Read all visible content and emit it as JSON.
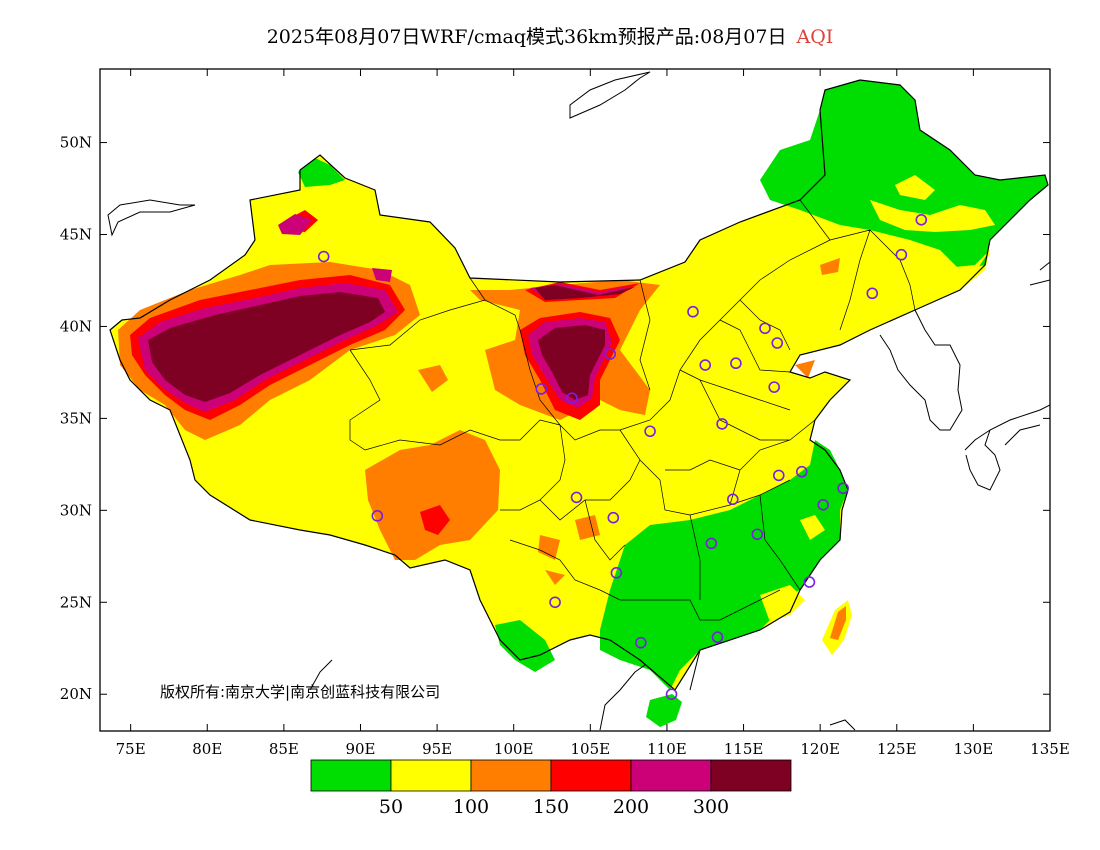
{
  "header": {
    "title": "2025年08月07日WRF/cmaq模式36km预报产品:08月07日",
    "variable": "AQI",
    "variable_color": "#e0403a"
  },
  "map": {
    "lon_range": [
      73,
      135
    ],
    "lat_range": [
      18,
      54
    ],
    "lon_ticks": [
      {
        "v": 75,
        "label": "75E"
      },
      {
        "v": 80,
        "label": "80E"
      },
      {
        "v": 85,
        "label": "85E"
      },
      {
        "v": 90,
        "label": "90E"
      },
      {
        "v": 95,
        "label": "95E"
      },
      {
        "v": 100,
        "label": "100E"
      },
      {
        "v": 105,
        "label": "105E"
      },
      {
        "v": 110,
        "label": "110E"
      },
      {
        "v": 115,
        "label": "115E"
      },
      {
        "v": 120,
        "label": "120E"
      },
      {
        "v": 125,
        "label": "125E"
      },
      {
        "v": 130,
        "label": "130E"
      },
      {
        "v": 135,
        "label": "135E"
      }
    ],
    "lat_ticks": [
      {
        "v": 20,
        "label": "20N"
      },
      {
        "v": 25,
        "label": "25N"
      },
      {
        "v": 30,
        "label": "30N"
      },
      {
        "v": 35,
        "label": "35N"
      },
      {
        "v": 40,
        "label": "40N"
      },
      {
        "v": 45,
        "label": "45N"
      },
      {
        "v": 50,
        "label": "50N"
      }
    ],
    "copyright": "版权所有:南京大学|南京创蓝科技有限公司"
  },
  "legend": {
    "colors": [
      "#00dd00",
      "#ffff00",
      "#ff7e00",
      "#ff0000",
      "#cc0077",
      "#7e0023"
    ],
    "labels": [
      "50",
      "100",
      "150",
      "200",
      "300"
    ]
  },
  "cities": [
    [
      126.6,
      45.8
    ],
    [
      125.3,
      43.9
    ],
    [
      123.4,
      41.8
    ],
    [
      116.4,
      39.9
    ],
    [
      117.2,
      39.1
    ],
    [
      114.5,
      38.0
    ],
    [
      112.5,
      37.9
    ],
    [
      111.7,
      40.8
    ],
    [
      106.3,
      38.5
    ],
    [
      103.8,
      36.1
    ],
    [
      101.8,
      36.6
    ],
    [
      108.9,
      34.3
    ],
    [
      113.6,
      34.7
    ],
    [
      117.0,
      36.7
    ],
    [
      104.1,
      30.7
    ],
    [
      106.5,
      29.6
    ],
    [
      106.7,
      26.6
    ],
    [
      102.7,
      25.0
    ],
    [
      108.3,
      22.8
    ],
    [
      113.3,
      23.1
    ],
    [
      110.3,
      20.0
    ],
    [
      112.9,
      28.2
    ],
    [
      114.3,
      30.6
    ],
    [
      115.9,
      28.7
    ],
    [
      117.3,
      31.9
    ],
    [
      118.8,
      32.1
    ],
    [
      120.2,
      30.3
    ],
    [
      121.5,
      31.2
    ],
    [
      119.3,
      26.1
    ],
    [
      91.1,
      29.7
    ],
    [
      87.6,
      43.8
    ]
  ]
}
